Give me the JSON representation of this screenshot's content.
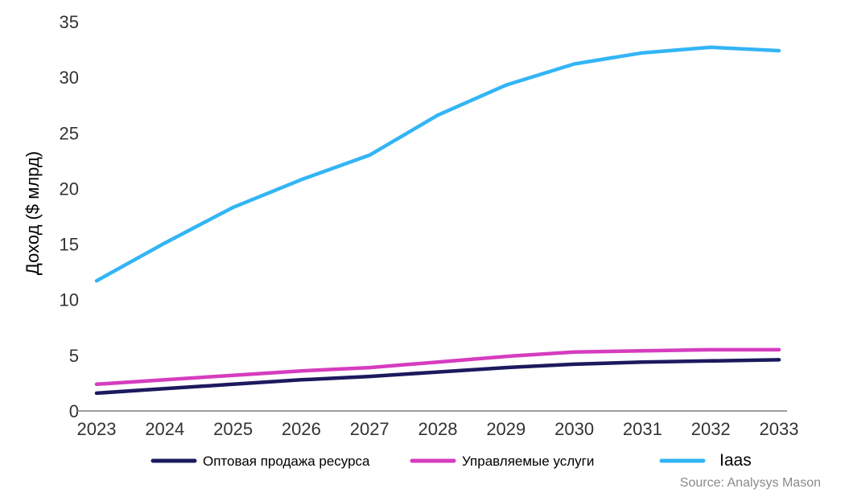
{
  "chart_data": {
    "type": "line",
    "title": "",
    "xlabel": "",
    "ylabel": "Доход ($ млрд)",
    "x": [
      2023,
      2024,
      2025,
      2026,
      2027,
      2028,
      2029,
      2030,
      2031,
      2032,
      2033
    ],
    "ylim": [
      0,
      35
    ],
    "yticks": [
      0,
      5,
      10,
      15,
      20,
      25,
      30,
      35
    ],
    "grid": false,
    "legend_position": "bottom",
    "series": [
      {
        "name": "Оптовая продажа ресурса",
        "color": "#1c1a5e",
        "values": [
          1.6,
          2.0,
          2.4,
          2.8,
          3.1,
          3.5,
          3.9,
          4.2,
          4.4,
          4.5,
          4.6
        ]
      },
      {
        "name": "Управляемые услуги",
        "color": "#d63cbf",
        "values": [
          2.4,
          2.8,
          3.2,
          3.6,
          3.9,
          4.4,
          4.9,
          5.3,
          5.4,
          5.5,
          5.5
        ]
      },
      {
        "name": "Iaas",
        "color": "#33b5f5",
        "values": [
          11.7,
          15.1,
          18.3,
          20.8,
          23.0,
          26.6,
          29.3,
          31.2,
          32.2,
          32.7,
          32.4
        ]
      }
    ],
    "source": "Source: Analysys Mason"
  }
}
